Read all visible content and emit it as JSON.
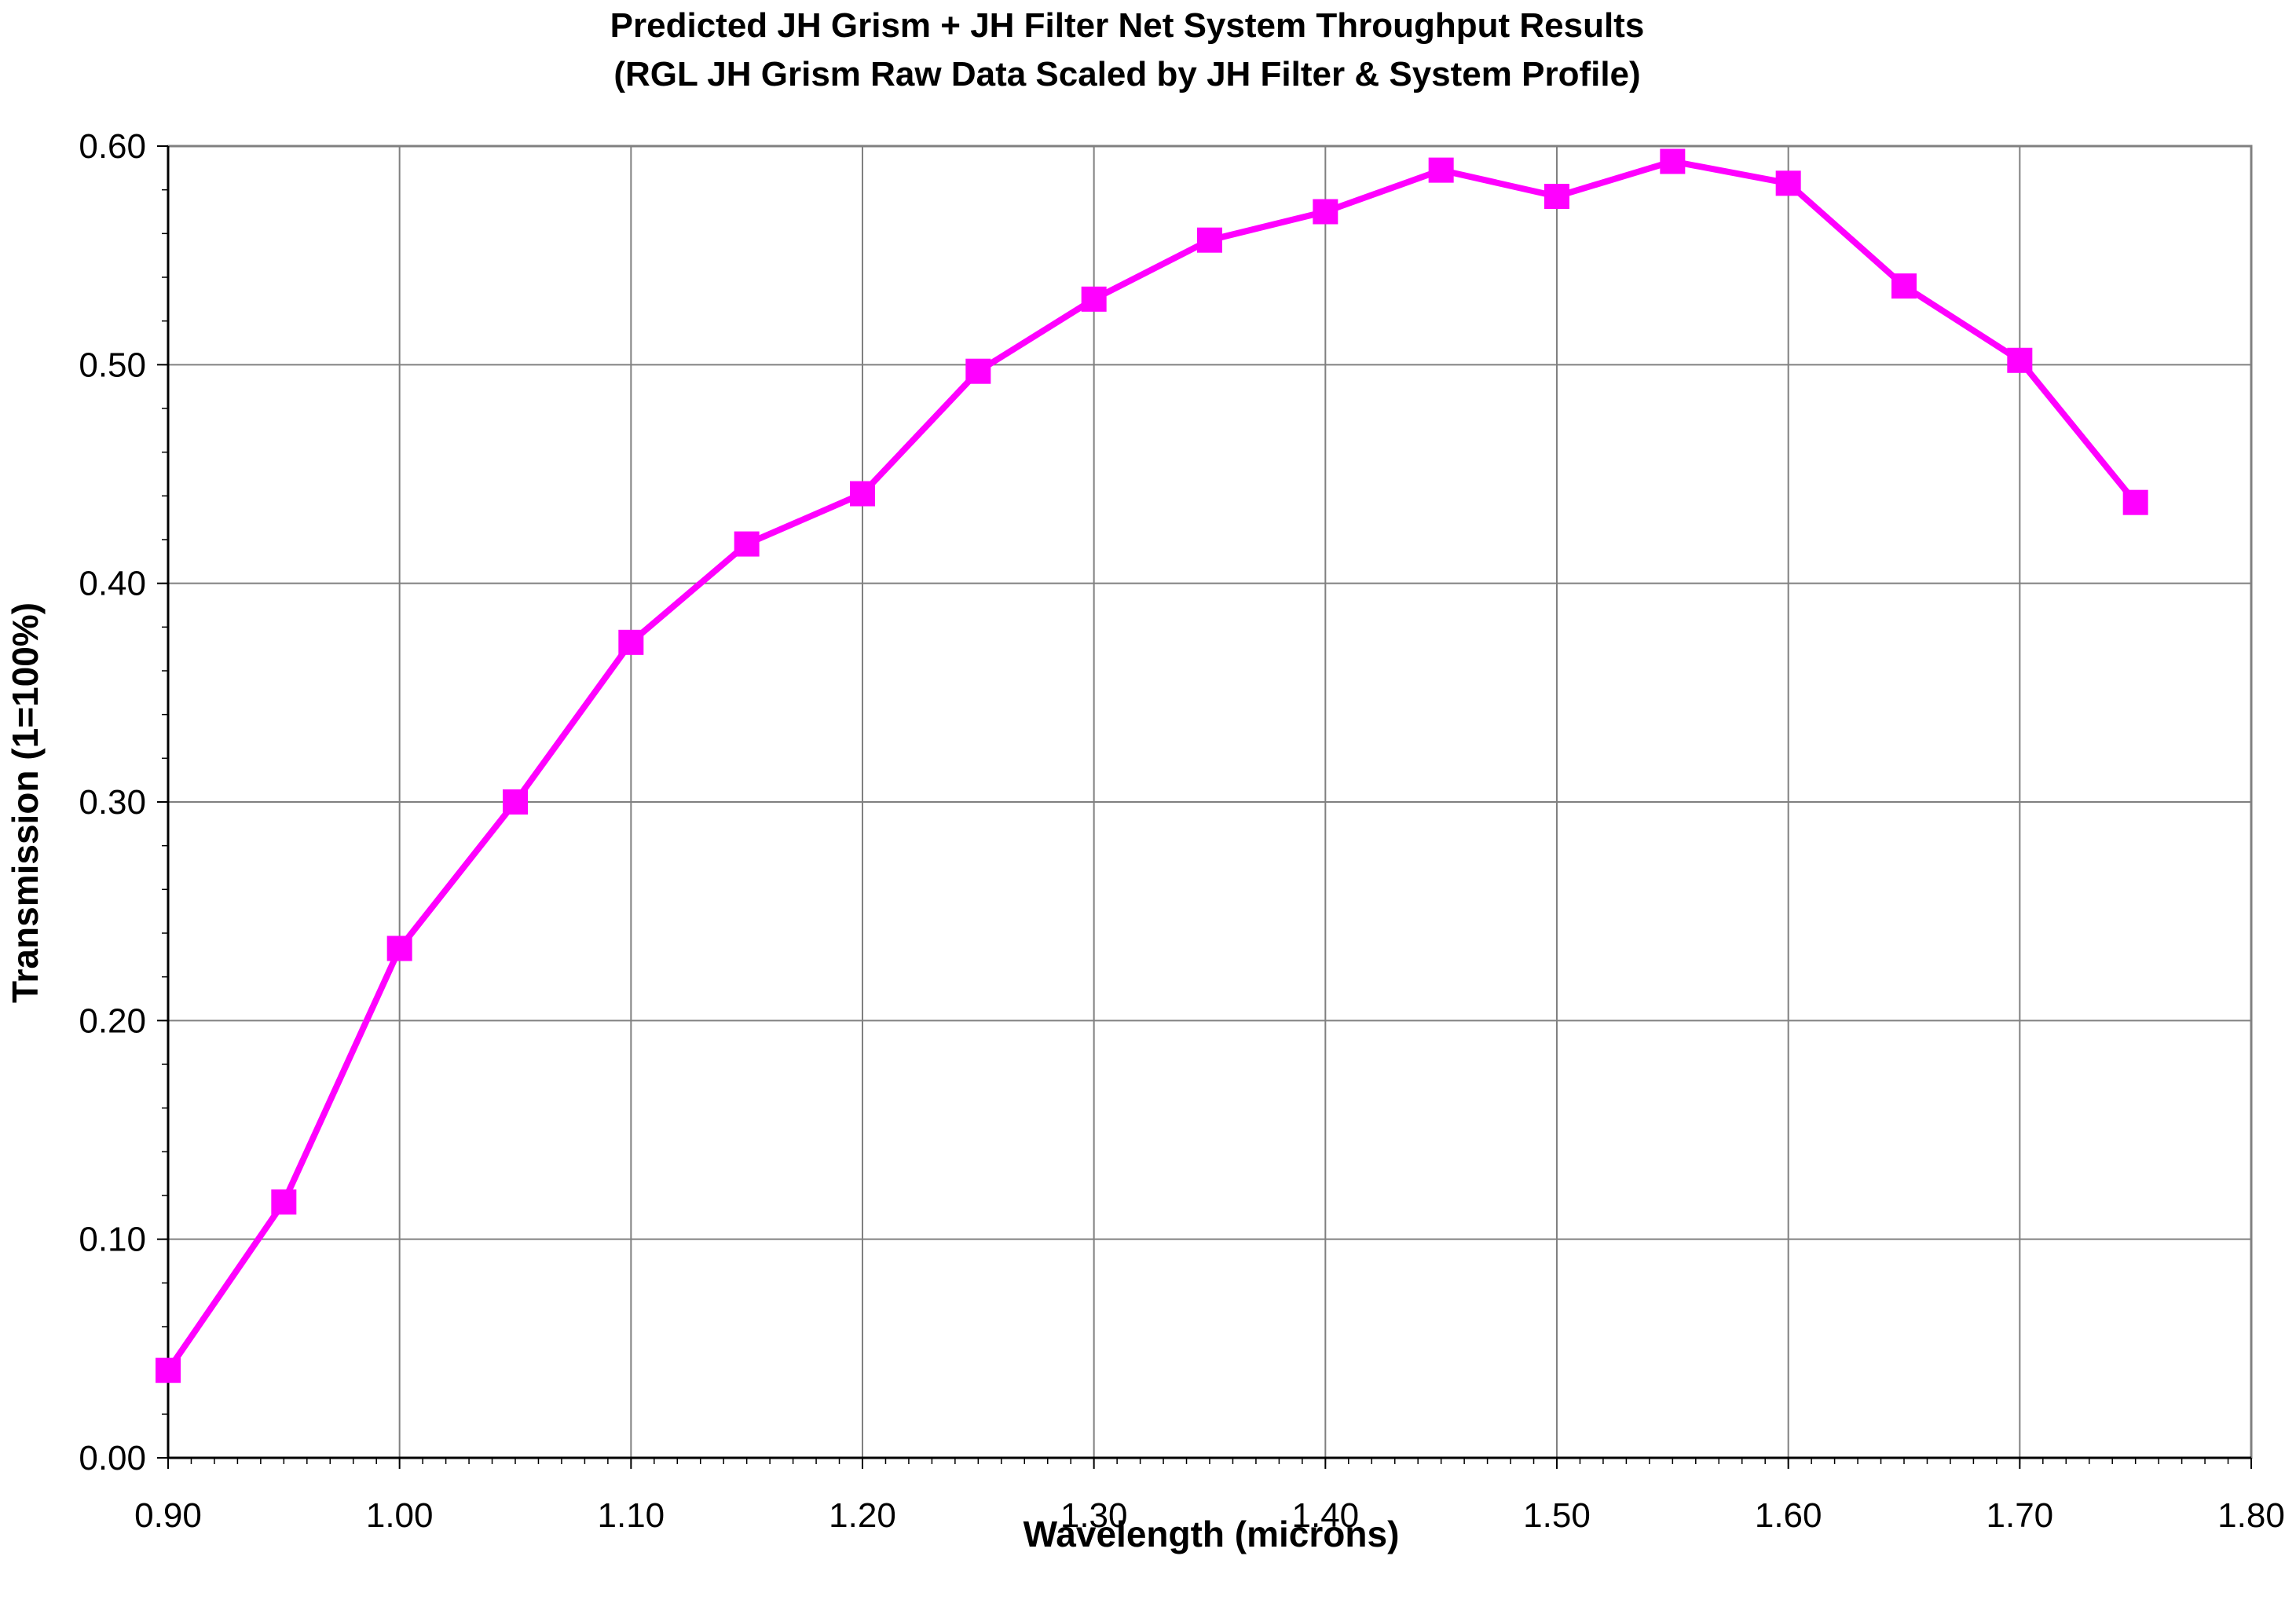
{
  "chart_data": {
    "type": "line",
    "title": "Predicted JH Grism + JH Filter Net System Throughput Results",
    "subtitle": "(RGL JH Grism Raw Data Scaled by JH Filter & System Profile)",
    "xlabel": "Wavelength (microns)",
    "ylabel": "Transmission (1=100%)",
    "xlim": [
      0.9,
      1.8
    ],
    "ylim": [
      0.0,
      0.6
    ],
    "x_ticks": [
      "0.90",
      "1.00",
      "1.10",
      "1.20",
      "1.30",
      "1.40",
      "1.50",
      "1.60",
      "1.70",
      "1.80"
    ],
    "y_ticks": [
      "0.00",
      "0.10",
      "0.20",
      "0.30",
      "0.40",
      "0.50",
      "0.60"
    ],
    "grid": true,
    "legend": "none",
    "series": [
      {
        "color": "#ff00ff",
        "marker": "square",
        "x": [
          0.9,
          0.95,
          1.0,
          1.05,
          1.1,
          1.15,
          1.2,
          1.25,
          1.3,
          1.35,
          1.4,
          1.45,
          1.5,
          1.55,
          1.6,
          1.65,
          1.7,
          1.75
        ],
        "y": [
          0.04,
          0.117,
          0.233,
          0.3,
          0.373,
          0.418,
          0.441,
          0.497,
          0.53,
          0.557,
          0.57,
          0.589,
          0.577,
          0.593,
          0.583,
          0.536,
          0.502,
          0.437
        ]
      }
    ]
  }
}
